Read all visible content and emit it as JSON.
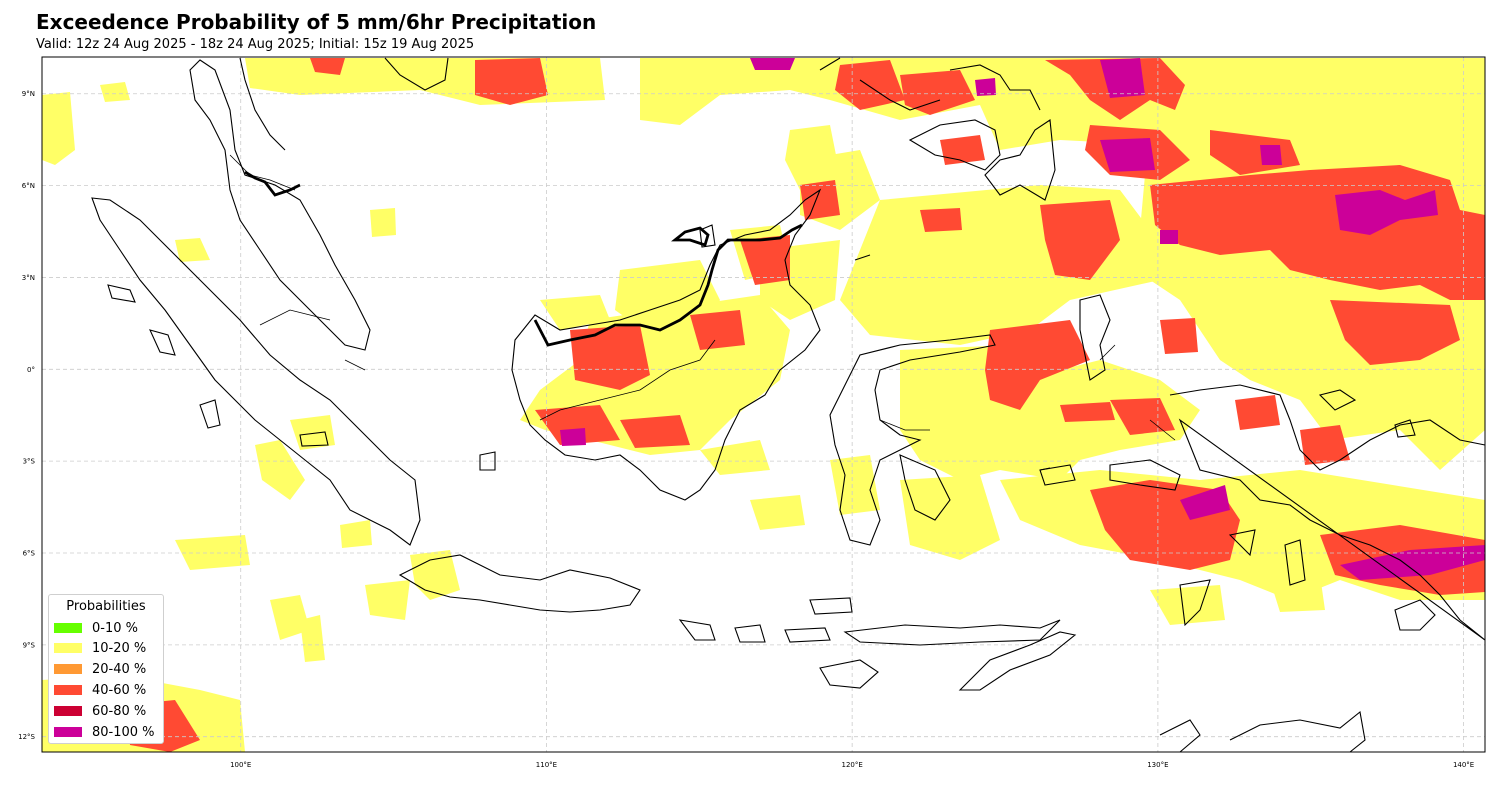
{
  "title": "Exceedence Probability of 5 mm/6hr Precipitation",
  "subtitle": "Valid: 12z 24 Aug 2025 - 18z 24 Aug 2025; Initial: 15z 19 Aug 2025",
  "map": {
    "lon_range": [
      93.5,
      140.7
    ],
    "lat_range": [
      -12.5,
      10.2
    ],
    "lat_ticks": [
      {
        "value": 9,
        "label": "9°N"
      },
      {
        "value": 6,
        "label": "6°N"
      },
      {
        "value": 3,
        "label": "3°N"
      },
      {
        "value": 0,
        "label": "0°"
      },
      {
        "value": -3,
        "label": "3°S"
      },
      {
        "value": -6,
        "label": "6°S"
      },
      {
        "value": -9,
        "label": "9°S"
      },
      {
        "value": -12,
        "label": "12°S"
      }
    ],
    "lon_ticks": [
      {
        "value": 100,
        "label": "100°E"
      },
      {
        "value": 110,
        "label": "110°E"
      },
      {
        "value": 120,
        "label": "120°E"
      },
      {
        "value": 130,
        "label": "130°E"
      },
      {
        "value": 140,
        "label": "140°E"
      }
    ],
    "colors": {
      "p10_20": "#ffff66",
      "p40_60": "#ff4a33",
      "p80_100": "#cc0099",
      "coast": "#000000",
      "border": "#000000",
      "grid": "#cccccc"
    }
  },
  "legend": {
    "title": "Probabilities",
    "items": [
      {
        "label": "0-10 %",
        "color": "#66ff00"
      },
      {
        "label": "10-20 %",
        "color": "#ffff66"
      },
      {
        "label": "20-40 %",
        "color": "#ff9933"
      },
      {
        "label": "40-60 %",
        "color": "#ff4a33"
      },
      {
        "label": "60-80 %",
        "color": "#cc0033"
      },
      {
        "label": "80-100 %",
        "color": "#cc0099"
      }
    ]
  }
}
